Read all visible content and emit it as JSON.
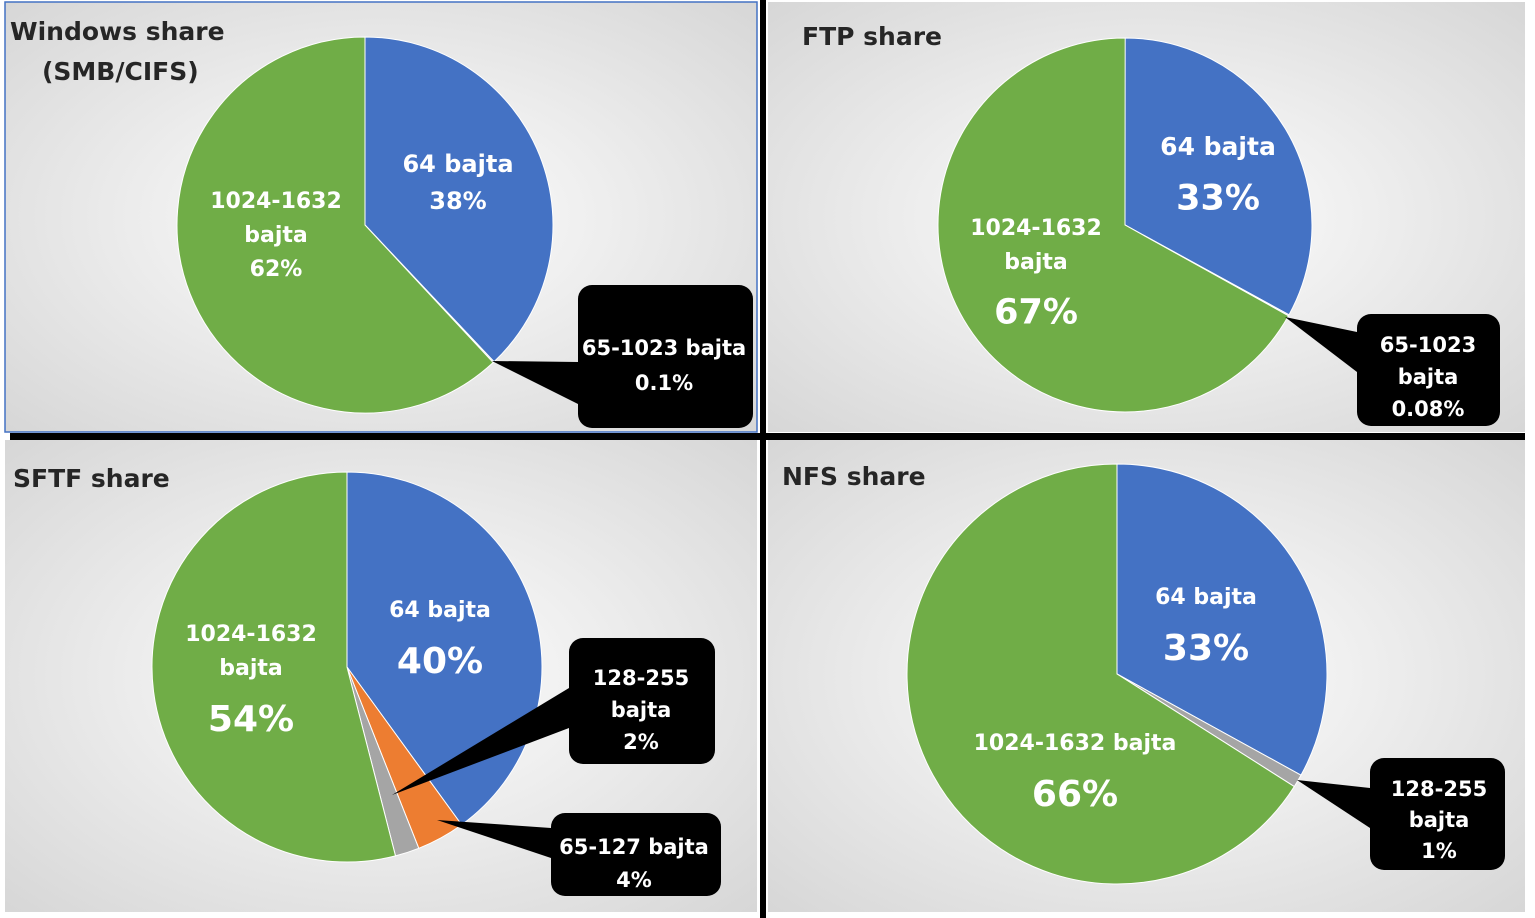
{
  "chart_data": [
    {
      "type": "pie",
      "title": "Windows share (SMB/CIFS)",
      "title_lines": [
        "Windows share",
        "(SMB/CIFS)"
      ],
      "slices": [
        {
          "name": "64 bajta",
          "value": 38,
          "color": "#4472C4",
          "label_lines": [
            "64 bajta",
            "38%"
          ]
        },
        {
          "name": "65-1023 bajta",
          "value": 0.1,
          "color": "#A5A5A5",
          "label_lines": [
            "65-1023 bajta",
            "0.1%"
          ],
          "callout": true
        },
        {
          "name": "1024-1632 bajta",
          "value": 62,
          "color": "#70AD47",
          "label_lines": [
            "1024-1632",
            "bajta",
            "62%"
          ]
        }
      ]
    },
    {
      "type": "pie",
      "title": "FTP share",
      "title_lines": [
        "FTP share"
      ],
      "slices": [
        {
          "name": "64 bajta",
          "value": 33,
          "color": "#4472C4",
          "label_lines": [
            "64 bajta",
            "33%"
          ]
        },
        {
          "name": "65-1023 bajta",
          "value": 0.08,
          "color": "#A5A5A5",
          "label_lines": [
            "65-1023",
            "bajta",
            "0.08%"
          ],
          "callout": true
        },
        {
          "name": "1024-1632 bajta",
          "value": 67,
          "color": "#70AD47",
          "label_lines": [
            "1024-1632",
            "bajta",
            "67%"
          ]
        }
      ]
    },
    {
      "type": "pie",
      "title": "SFTF share",
      "title_lines": [
        "SFTF share"
      ],
      "slices": [
        {
          "name": "64 bajta",
          "value": 40,
          "color": "#4472C4",
          "label_lines": [
            "64 bajta",
            "40%"
          ]
        },
        {
          "name": "65-127 bajta",
          "value": 4,
          "color": "#ED7D31",
          "label_lines": [
            "65-127 bajta",
            "4%"
          ],
          "callout": true
        },
        {
          "name": "128-255 bajta",
          "value": 2,
          "color": "#A5A5A5",
          "label_lines": [
            "128-255",
            "bajta",
            "2%"
          ],
          "callout": true
        },
        {
          "name": "1024-1632 bajta",
          "value": 54,
          "color": "#70AD47",
          "label_lines": [
            "1024-1632",
            "bajta",
            "54%"
          ]
        }
      ]
    },
    {
      "type": "pie",
      "title": "NFS share",
      "title_lines": [
        "NFS share"
      ],
      "slices": [
        {
          "name": "64 bajta",
          "value": 33,
          "color": "#4472C4",
          "label_lines": [
            "64 bajta",
            "33%"
          ]
        },
        {
          "name": "128-255 bajta",
          "value": 1,
          "color": "#A5A5A5",
          "label_lines": [
            "128-255",
            "bajta",
            "1%"
          ],
          "callout": true
        },
        {
          "name": "1024-1632 bajta",
          "value": 66,
          "color": "#70AD47",
          "label_lines": [
            "1024-1632 bajta",
            "66%"
          ]
        }
      ]
    }
  ]
}
